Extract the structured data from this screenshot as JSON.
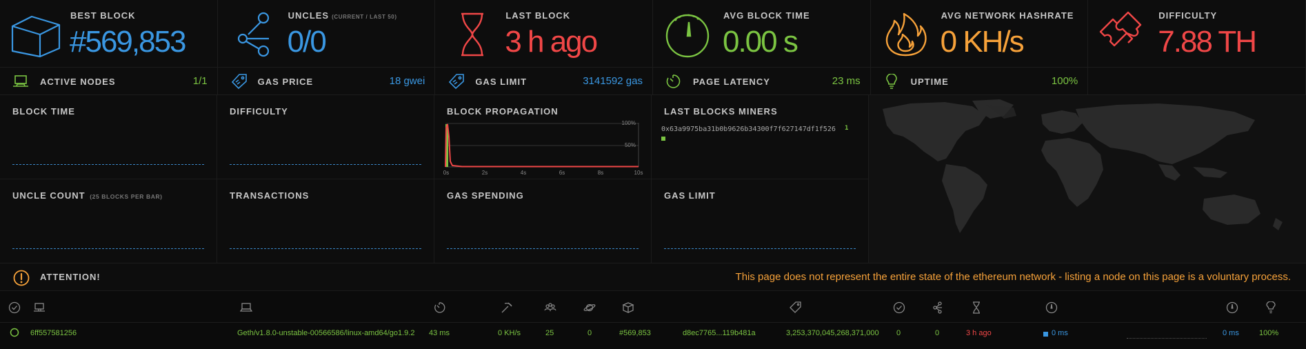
{
  "colors": {
    "blue": "#3a97e2",
    "green": "#7bc442",
    "red": "#f04747",
    "orange": "#f7a23a"
  },
  "stats": [
    {
      "icon": "cube-icon",
      "label": "BEST BLOCK",
      "value": "#569,853",
      "color": "#3a97e2"
    },
    {
      "icon": "uncles-icon",
      "label": "UNCLES",
      "sub": "(CURRENT / LAST 50)",
      "value": "0/0",
      "color": "#3a97e2"
    },
    {
      "icon": "hourglass-icon",
      "label": "LAST BLOCK",
      "value": "3 h ago",
      "color": "#f04747"
    },
    {
      "icon": "gauge-icon",
      "label": "AVG BLOCK TIME",
      "value": "0.00 s",
      "color": "#7bc442"
    },
    {
      "icon": "fire-icon",
      "label": "AVG NETWORK HASHRATE",
      "value": "0 KH/s",
      "color": "#f7a23a"
    },
    {
      "icon": "puzzle-icon",
      "label": "DIFFICULTY",
      "value": "7.88 TH",
      "color": "#f04747"
    }
  ],
  "substats": [
    {
      "icon": "laptop-icon",
      "label": "ACTIVE NODES",
      "value": "1/1",
      "color": "#7bc442"
    },
    {
      "icon": "tag-icon",
      "label": "GAS PRICE",
      "value": "18 gwei",
      "color": "#3a97e2"
    },
    {
      "icon": "tag-icon",
      "label": "GAS LIMIT",
      "value": "3141592 gas",
      "color": "#3a97e2"
    },
    {
      "icon": "timer-icon",
      "label": "PAGE LATENCY",
      "value": "23 ms",
      "color": "#7bc442"
    },
    {
      "icon": "bulb-icon",
      "label": "UPTIME",
      "value": "100%",
      "color": "#7bc442"
    }
  ],
  "charts": {
    "block_time": "BLOCK TIME",
    "difficulty": "DIFFICULTY",
    "block_propagation": "BLOCK PROPAGATION",
    "last_blocks_miners": "LAST BLOCKS MINERS",
    "uncle_count": "UNCLE COUNT",
    "uncle_count_sub": "(25 BLOCKS PER BAR)",
    "transactions": "TRANSACTIONS",
    "gas_spending": "GAS SPENDING",
    "gas_limit": "GAS LIMIT"
  },
  "propagation": {
    "y_ticks": [
      "100%",
      "50%"
    ],
    "x_ticks": [
      "0s",
      "2s",
      "4s",
      "6s",
      "8s",
      "10s"
    ]
  },
  "miners": [
    {
      "address": "0x63a9975ba31b0b9626b34300f7f627147df1f526",
      "count": "1"
    }
  ],
  "attention": {
    "label": "ATTENTION!",
    "message": "This page does not represent the entire state of the ethereum network - listing a node on this page is a voluntary process."
  },
  "node": {
    "name": "6ff557581256",
    "type": "Geth/v1.8.0-unstable-00566586/linux-amd64/go1.9.2",
    "latency": "43 ms",
    "hashrate": "0 KH/s",
    "peers": "25",
    "pending": "0",
    "block": "#569,853",
    "hash": "d8ec7765...119b481a",
    "difficulty": "3,253,370,045,268,371,000",
    "txs": "0",
    "uncles": "0",
    "last_block": "3 h ago",
    "propagation": "0 ms",
    "avg_propagation": "0 ms",
    "uptime": "100%"
  }
}
